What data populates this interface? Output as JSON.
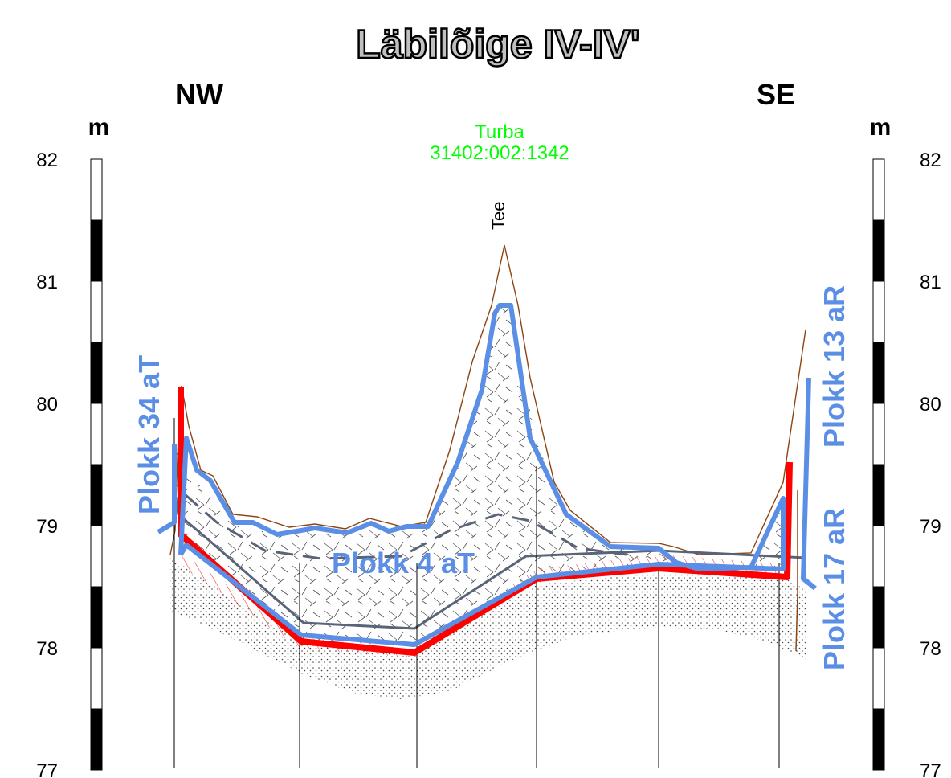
{
  "title": "Läbilõige IV-IV'",
  "directions": {
    "left": "NW",
    "right": "SE"
  },
  "unit": "m",
  "scale_ticks": [
    "82",
    "81",
    "80",
    "79",
    "78",
    "77"
  ],
  "deposit": {
    "name": "Turba",
    "code": "31402:002:1342"
  },
  "road_label": "Tee",
  "blocks": {
    "left": "Plokk 34 aT",
    "middle": "Plokk 4 aT",
    "right_top": "Plokk 13 aR",
    "right_bottom": "Plokk 17 aR"
  },
  "colors": {
    "title_fill": "#c0c0c0",
    "deposit_label": "#00ff00",
    "block_outline": "#5b8fe6",
    "mineral_bottom": "#ff0000",
    "ground_surface": "#8b4513",
    "layer_boundary": "#5a6478",
    "boreholes": "#000000"
  }
}
